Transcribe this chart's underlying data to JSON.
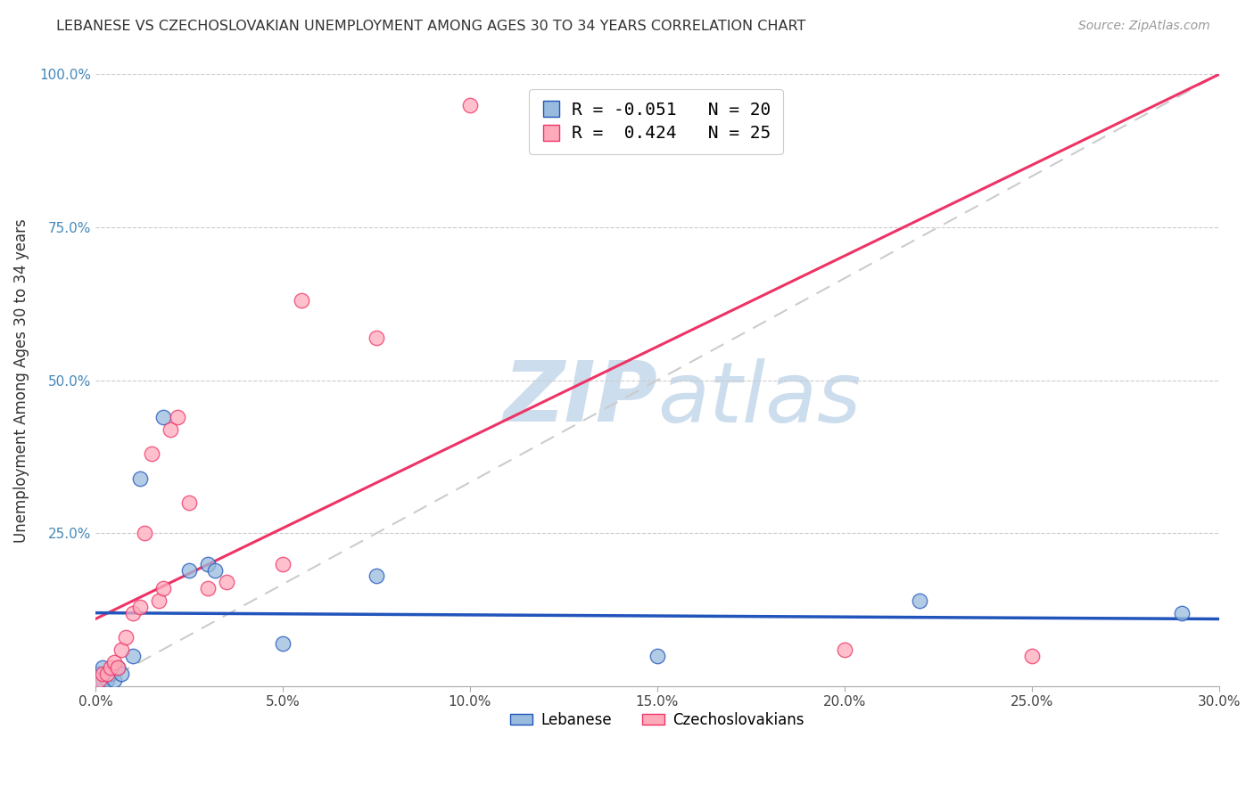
{
  "title": "LEBANESE VS CZECHOSLOVAKIAN UNEMPLOYMENT AMONG AGES 30 TO 34 YEARS CORRELATION CHART",
  "source": "Source: ZipAtlas.com",
  "ylabel": "Unemployment Among Ages 30 to 34 years",
  "xlim": [
    0.0,
    0.3
  ],
  "ylim": [
    0.0,
    1.0
  ],
  "xticks": [
    0.0,
    0.05,
    0.1,
    0.15,
    0.2,
    0.25,
    0.3
  ],
  "yticks": [
    0.0,
    0.25,
    0.5,
    0.75,
    1.0
  ],
  "xtick_labels": [
    "0.0%",
    "5.0%",
    "10.0%",
    "15.0%",
    "20.0%",
    "25.0%",
    "30.0%"
  ],
  "ytick_labels": [
    "",
    "25.0%",
    "50.0%",
    "75.0%",
    "100.0%"
  ],
  "legend_label1": "Lebanese",
  "legend_label2": "Czechoslovakians",
  "color_blue": "#99BBDD",
  "color_pink": "#FFAABB",
  "color_line_blue": "#2255BB",
  "color_line_pink": "#EE3366",
  "color_diag": "#CCCCCC",
  "watermark_color": "#CCDDED",
  "R_lebanese": -0.051,
  "N_lebanese": 20,
  "R_czech": 0.424,
  "N_czech": 25,
  "lebanese_x": [
    0.001,
    0.001,
    0.002,
    0.002,
    0.003,
    0.004,
    0.005,
    0.006,
    0.007,
    0.01,
    0.012,
    0.018,
    0.025,
    0.03,
    0.032,
    0.05,
    0.075,
    0.15,
    0.22,
    0.29
  ],
  "lebanese_y": [
    0.005,
    0.02,
    0.01,
    0.03,
    0.01,
    0.02,
    0.01,
    0.03,
    0.02,
    0.05,
    0.34,
    0.44,
    0.19,
    0.2,
    0.19,
    0.07,
    0.18,
    0.05,
    0.14,
    0.12
  ],
  "czech_x": [
    0.001,
    0.002,
    0.003,
    0.004,
    0.005,
    0.006,
    0.007,
    0.008,
    0.01,
    0.012,
    0.013,
    0.015,
    0.017,
    0.018,
    0.02,
    0.022,
    0.025,
    0.03,
    0.035,
    0.05,
    0.055,
    0.075,
    0.1,
    0.2,
    0.25
  ],
  "czech_y": [
    0.01,
    0.02,
    0.02,
    0.03,
    0.04,
    0.03,
    0.06,
    0.08,
    0.12,
    0.13,
    0.25,
    0.38,
    0.14,
    0.16,
    0.42,
    0.44,
    0.3,
    0.16,
    0.17,
    0.2,
    0.63,
    0.57,
    0.95,
    0.06,
    0.05
  ],
  "pink_line_x": [
    0.0,
    0.3
  ],
  "pink_line_y": [
    0.11,
    1.0
  ],
  "blue_line_x": [
    0.0,
    0.3
  ],
  "blue_line_y": [
    0.12,
    0.11
  ],
  "diag_line_x": [
    0.0,
    0.3
  ],
  "diag_line_y": [
    0.0,
    1.0
  ]
}
